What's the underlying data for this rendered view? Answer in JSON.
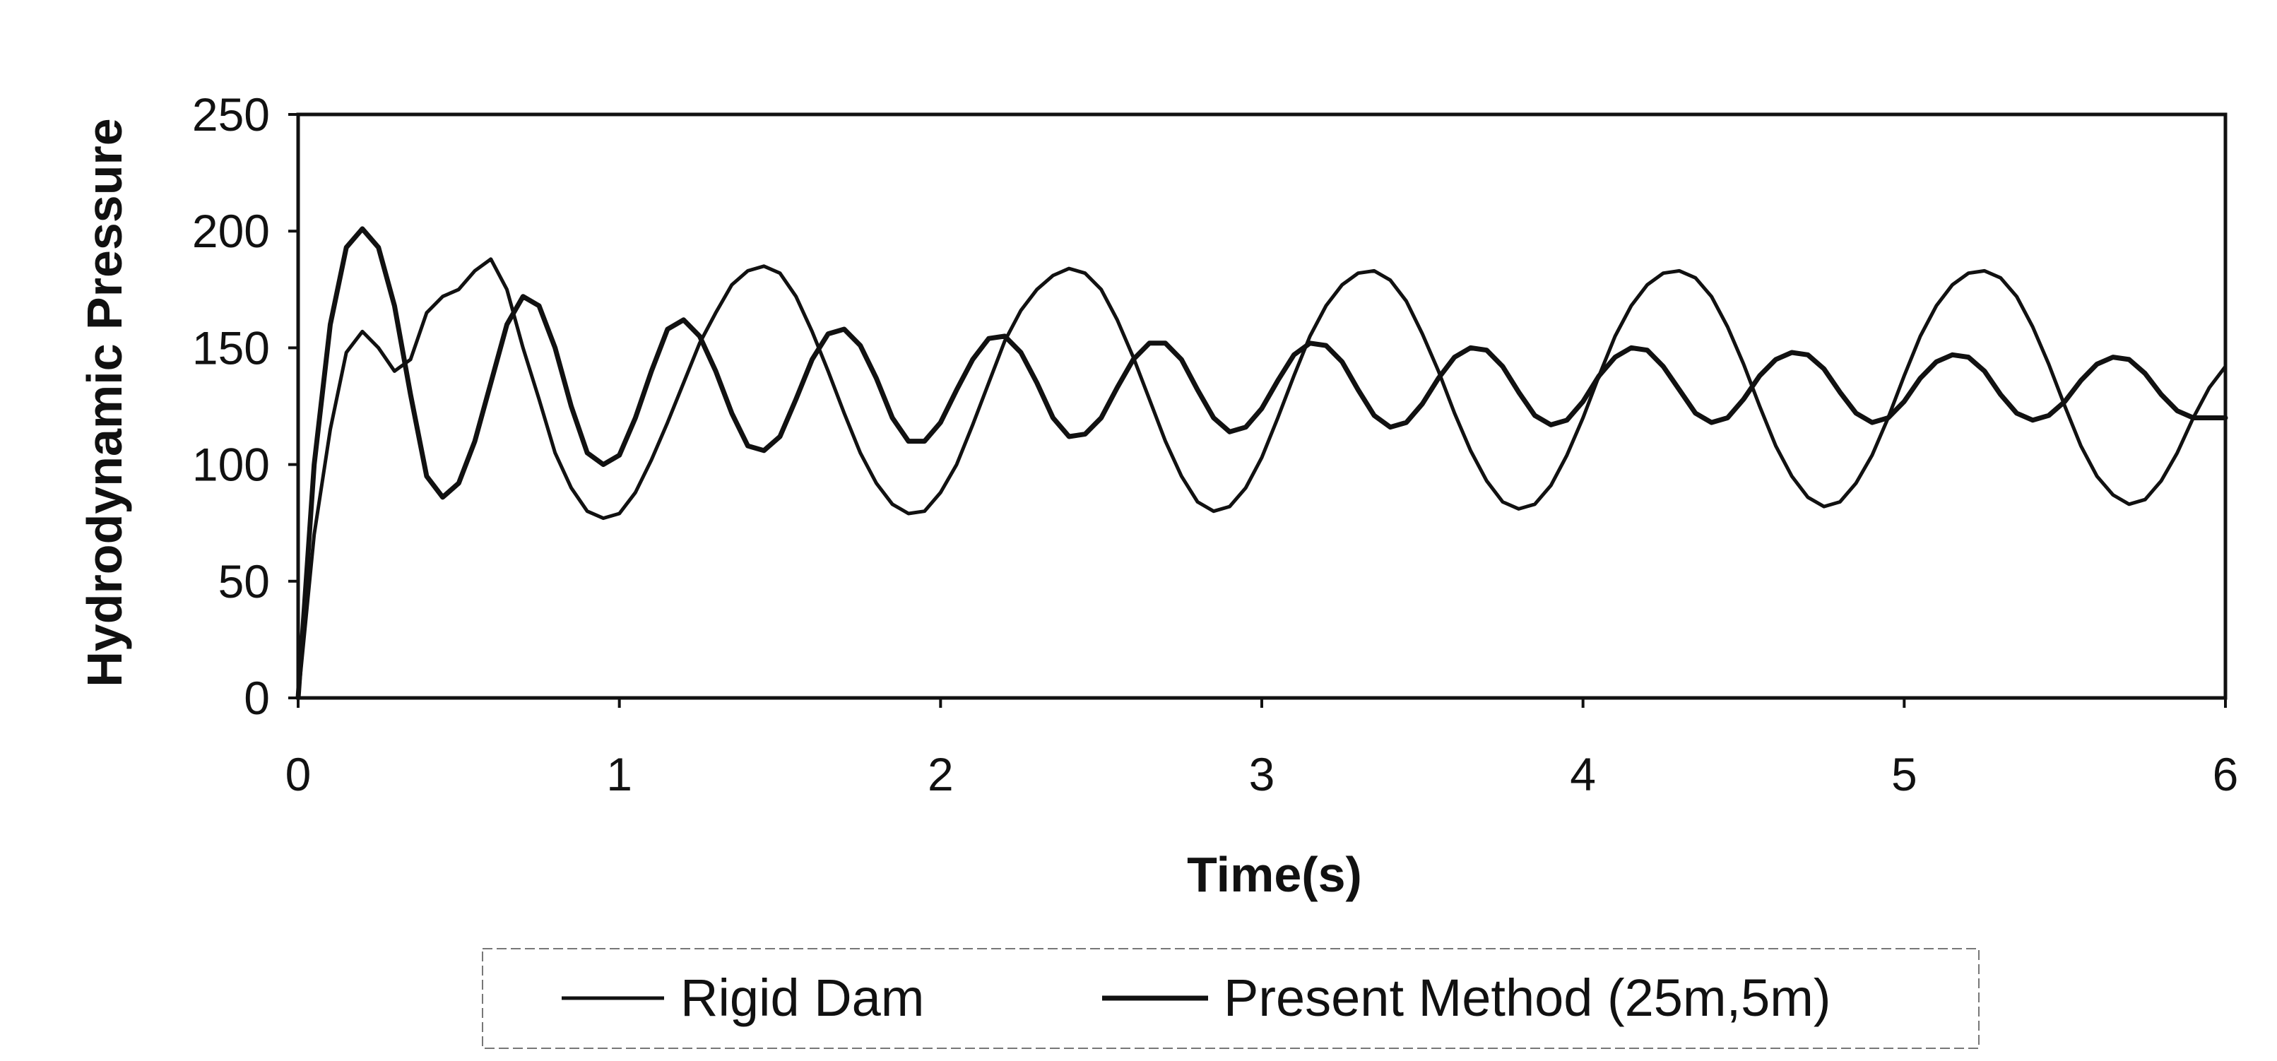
{
  "chart_data": {
    "type": "line",
    "title": "",
    "xlabel": "Time(s)",
    "ylabel": "Hydrodynamic Pressure",
    "xlim": [
      0,
      6
    ],
    "ylim": [
      0,
      250
    ],
    "x_ticks": [
      "0",
      "1",
      "2",
      "3",
      "4",
      "5",
      "6"
    ],
    "y_ticks": [
      "0",
      "50",
      "100",
      "150",
      "200",
      "250"
    ],
    "grid": false,
    "legend_position": "bottom",
    "series": [
      {
        "name": "Rigid Dam",
        "color": "#111111",
        "points": [
          [
            0.0,
            0
          ],
          [
            0.05,
            70
          ],
          [
            0.1,
            115
          ],
          [
            0.15,
            148
          ],
          [
            0.2,
            157
          ],
          [
            0.25,
            150
          ],
          [
            0.3,
            140
          ],
          [
            0.35,
            145
          ],
          [
            0.4,
            165
          ],
          [
            0.45,
            172
          ],
          [
            0.5,
            175
          ],
          [
            0.55,
            183
          ],
          [
            0.6,
            188
          ],
          [
            0.65,
            175
          ],
          [
            0.7,
            150
          ],
          [
            0.75,
            128
          ],
          [
            0.8,
            105
          ],
          [
            0.85,
            90
          ],
          [
            0.9,
            80
          ],
          [
            0.95,
            77
          ],
          [
            1.0,
            79
          ],
          [
            1.05,
            88
          ],
          [
            1.1,
            102
          ],
          [
            1.15,
            118
          ],
          [
            1.2,
            135
          ],
          [
            1.25,
            152
          ],
          [
            1.3,
            165
          ],
          [
            1.35,
            177
          ],
          [
            1.4,
            183
          ],
          [
            1.45,
            185
          ],
          [
            1.5,
            182
          ],
          [
            1.55,
            172
          ],
          [
            1.6,
            157
          ],
          [
            1.65,
            140
          ],
          [
            1.7,
            122
          ],
          [
            1.75,
            105
          ],
          [
            1.8,
            92
          ],
          [
            1.85,
            83
          ],
          [
            1.9,
            79
          ],
          [
            1.95,
            80
          ],
          [
            2.0,
            88
          ],
          [
            2.05,
            100
          ],
          [
            2.1,
            117
          ],
          [
            2.15,
            135
          ],
          [
            2.2,
            153
          ],
          [
            2.25,
            166
          ],
          [
            2.3,
            175
          ],
          [
            2.35,
            181
          ],
          [
            2.4,
            184
          ],
          [
            2.45,
            182
          ],
          [
            2.5,
            175
          ],
          [
            2.55,
            162
          ],
          [
            2.6,
            146
          ],
          [
            2.65,
            128
          ],
          [
            2.7,
            110
          ],
          [
            2.75,
            95
          ],
          [
            2.8,
            84
          ],
          [
            2.85,
            80
          ],
          [
            2.9,
            82
          ],
          [
            2.95,
            90
          ],
          [
            3.0,
            103
          ],
          [
            3.05,
            120
          ],
          [
            3.1,
            138
          ],
          [
            3.15,
            155
          ],
          [
            3.2,
            168
          ],
          [
            3.25,
            177
          ],
          [
            3.3,
            182
          ],
          [
            3.35,
            183
          ],
          [
            3.4,
            179
          ],
          [
            3.45,
            170
          ],
          [
            3.5,
            156
          ],
          [
            3.55,
            140
          ],
          [
            3.6,
            122
          ],
          [
            3.65,
            106
          ],
          [
            3.7,
            93
          ],
          [
            3.75,
            84
          ],
          [
            3.8,
            81
          ],
          [
            3.85,
            83
          ],
          [
            3.9,
            91
          ],
          [
            3.95,
            104
          ],
          [
            4.0,
            120
          ],
          [
            4.05,
            138
          ],
          [
            4.1,
            155
          ],
          [
            4.15,
            168
          ],
          [
            4.2,
            177
          ],
          [
            4.25,
            182
          ],
          [
            4.3,
            183
          ],
          [
            4.35,
            180
          ],
          [
            4.4,
            172
          ],
          [
            4.45,
            159
          ],
          [
            4.5,
            143
          ],
          [
            4.55,
            125
          ],
          [
            4.6,
            108
          ],
          [
            4.65,
            95
          ],
          [
            4.7,
            86
          ],
          [
            4.75,
            82
          ],
          [
            4.8,
            84
          ],
          [
            4.85,
            92
          ],
          [
            4.9,
            104
          ],
          [
            4.95,
            120
          ],
          [
            5.0,
            138
          ],
          [
            5.05,
            155
          ],
          [
            5.1,
            168
          ],
          [
            5.15,
            177
          ],
          [
            5.2,
            182
          ],
          [
            5.25,
            183
          ],
          [
            5.3,
            180
          ],
          [
            5.35,
            172
          ],
          [
            5.4,
            159
          ],
          [
            5.45,
            143
          ],
          [
            5.5,
            125
          ],
          [
            5.55,
            108
          ],
          [
            5.6,
            95
          ],
          [
            5.65,
            87
          ],
          [
            5.7,
            83
          ],
          [
            5.75,
            85
          ],
          [
            5.8,
            93
          ],
          [
            5.85,
            105
          ],
          [
            5.9,
            120
          ],
          [
            5.95,
            133
          ],
          [
            6.0,
            142
          ]
        ]
      },
      {
        "name": "Present Method (25m,5m)",
        "color": "#111111",
        "points": [
          [
            0.0,
            0
          ],
          [
            0.05,
            100
          ],
          [
            0.1,
            160
          ],
          [
            0.15,
            193
          ],
          [
            0.2,
            201
          ],
          [
            0.25,
            193
          ],
          [
            0.3,
            168
          ],
          [
            0.35,
            130
          ],
          [
            0.4,
            95
          ],
          [
            0.45,
            86
          ],
          [
            0.5,
            92
          ],
          [
            0.55,
            110
          ],
          [
            0.6,
            135
          ],
          [
            0.65,
            160
          ],
          [
            0.7,
            172
          ],
          [
            0.75,
            168
          ],
          [
            0.8,
            150
          ],
          [
            0.85,
            125
          ],
          [
            0.9,
            105
          ],
          [
            0.95,
            100
          ],
          [
            1.0,
            104
          ],
          [
            1.05,
            120
          ],
          [
            1.1,
            140
          ],
          [
            1.15,
            158
          ],
          [
            1.2,
            162
          ],
          [
            1.25,
            155
          ],
          [
            1.3,
            140
          ],
          [
            1.35,
            122
          ],
          [
            1.4,
            108
          ],
          [
            1.45,
            106
          ],
          [
            1.5,
            112
          ],
          [
            1.55,
            128
          ],
          [
            1.6,
            145
          ],
          [
            1.65,
            156
          ],
          [
            1.7,
            158
          ],
          [
            1.75,
            151
          ],
          [
            1.8,
            137
          ],
          [
            1.85,
            120
          ],
          [
            1.9,
            110
          ],
          [
            1.95,
            110
          ],
          [
            2.0,
            118
          ],
          [
            2.05,
            132
          ],
          [
            2.1,
            145
          ],
          [
            2.15,
            154
          ],
          [
            2.2,
            155
          ],
          [
            2.25,
            148
          ],
          [
            2.3,
            135
          ],
          [
            2.35,
            120
          ],
          [
            2.4,
            112
          ],
          [
            2.45,
            113
          ],
          [
            2.5,
            120
          ],
          [
            2.55,
            133
          ],
          [
            2.6,
            145
          ],
          [
            2.65,
            152
          ],
          [
            2.7,
            152
          ],
          [
            2.75,
            145
          ],
          [
            2.8,
            132
          ],
          [
            2.85,
            120
          ],
          [
            2.9,
            114
          ],
          [
            2.95,
            116
          ],
          [
            3.0,
            124
          ],
          [
            3.05,
            136
          ],
          [
            3.1,
            147
          ],
          [
            3.15,
            152
          ],
          [
            3.2,
            151
          ],
          [
            3.25,
            144
          ],
          [
            3.3,
            132
          ],
          [
            3.35,
            121
          ],
          [
            3.4,
            116
          ],
          [
            3.45,
            118
          ],
          [
            3.5,
            126
          ],
          [
            3.55,
            137
          ],
          [
            3.6,
            146
          ],
          [
            3.65,
            150
          ],
          [
            3.7,
            149
          ],
          [
            3.75,
            142
          ],
          [
            3.8,
            131
          ],
          [
            3.85,
            121
          ],
          [
            3.9,
            117
          ],
          [
            3.95,
            119
          ],
          [
            4.0,
            127
          ],
          [
            4.05,
            138
          ],
          [
            4.1,
            146
          ],
          [
            4.15,
            150
          ],
          [
            4.2,
            149
          ],
          [
            4.25,
            142
          ],
          [
            4.3,
            132
          ],
          [
            4.35,
            122
          ],
          [
            4.4,
            118
          ],
          [
            4.45,
            120
          ],
          [
            4.5,
            128
          ],
          [
            4.55,
            138
          ],
          [
            4.6,
            145
          ],
          [
            4.65,
            148
          ],
          [
            4.7,
            147
          ],
          [
            4.75,
            141
          ],
          [
            4.8,
            131
          ],
          [
            4.85,
            122
          ],
          [
            4.9,
            118
          ],
          [
            4.95,
            120
          ],
          [
            5.0,
            127
          ],
          [
            5.05,
            137
          ],
          [
            5.1,
            144
          ],
          [
            5.15,
            147
          ],
          [
            5.2,
            146
          ],
          [
            5.25,
            140
          ],
          [
            5.3,
            130
          ],
          [
            5.35,
            122
          ],
          [
            5.4,
            119
          ],
          [
            5.45,
            121
          ],
          [
            5.5,
            127
          ],
          [
            5.55,
            136
          ],
          [
            5.6,
            143
          ],
          [
            5.65,
            146
          ],
          [
            5.7,
            145
          ],
          [
            5.75,
            139
          ],
          [
            5.8,
            130
          ],
          [
            5.85,
            123
          ],
          [
            5.9,
            120
          ],
          [
            5.95,
            120
          ],
          [
            6.0,
            120
          ]
        ]
      }
    ]
  }
}
